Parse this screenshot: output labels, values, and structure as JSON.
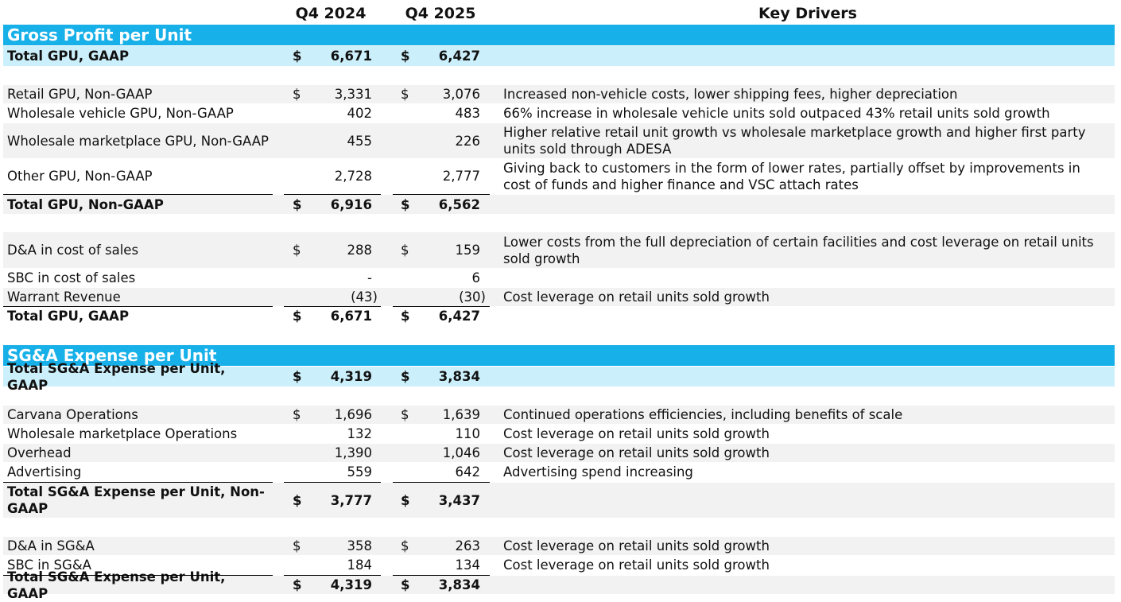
{
  "headers": {
    "col1": "Q4 2024",
    "col2": "Q4 2025",
    "drivers": "Key Drivers"
  },
  "sections": {
    "gross_profit": "Gross Profit per Unit",
    "sga": "SG&A Expense per Unit"
  },
  "rows": [
    {
      "label": "Total GPU, GAAP",
      "d1": "$",
      "v1": "6,671",
      "d2": "$",
      "v2": "6,427",
      "driver": ""
    },
    {
      "label": "Retail GPU, Non-GAAP",
      "d1": "$",
      "v1": "3,331",
      "d2": "$",
      "v2": "3,076",
      "driver": "Increased non-vehicle costs, lower shipping fees, higher depreciation"
    },
    {
      "label": "Wholesale vehicle GPU, Non-GAAP",
      "d1": "",
      "v1": "402",
      "d2": "",
      "v2": "483",
      "driver": "66% increase in wholesale vehicle units sold outpaced 43% retail units sold growth"
    },
    {
      "label": "Wholesale marketplace GPU, Non-GAAP",
      "d1": "",
      "v1": "455",
      "d2": "",
      "v2": "226",
      "driver": "Higher relative retail unit growth vs wholesale marketplace growth and higher first party units sold through ADESA"
    },
    {
      "label": "Other GPU, Non-GAAP",
      "d1": "",
      "v1": "2,728",
      "d2": "",
      "v2": "2,777",
      "driver": "Giving back to customers in the form of lower rates, partially offset by improvements in cost of funds and higher finance and VSC attach rates"
    },
    {
      "label": "Total GPU, Non-GAAP",
      "d1": "$",
      "v1": "6,916",
      "d2": "$",
      "v2": "6,562",
      "driver": ""
    },
    {
      "label": "D&A in cost of sales",
      "d1": "$",
      "v1": "288",
      "d2": "$",
      "v2": "159",
      "driver": "Lower costs from the full depreciation of certain facilities and cost leverage on retail units sold growth"
    },
    {
      "label": "SBC in cost of sales",
      "d1": "",
      "v1": "-",
      "d2": "",
      "v2": "6",
      "driver": ""
    },
    {
      "label": "Warrant Revenue",
      "d1": "",
      "v1": "(43)",
      "d2": "",
      "v2": "(30)",
      "driver": "Cost leverage on retail units sold growth"
    },
    {
      "label": "Total GPU, GAAP",
      "d1": "$",
      "v1": "6,671",
      "d2": "$",
      "v2": "6,427",
      "driver": ""
    },
    {
      "label": "Total SG&A Expense per Unit, GAAP",
      "d1": "$",
      "v1": "4,319",
      "d2": "$",
      "v2": "3,834",
      "driver": ""
    },
    {
      "label": "Carvana Operations",
      "d1": "$",
      "v1": "1,696",
      "d2": "$",
      "v2": "1,639",
      "driver": "Continued operations efficiencies, including benefits of scale"
    },
    {
      "label": "Wholesale marketplace Operations",
      "d1": "",
      "v1": "132",
      "d2": "",
      "v2": "110",
      "driver": "Cost leverage on retail units sold growth"
    },
    {
      "label": "Overhead",
      "d1": "",
      "v1": "1,390",
      "d2": "",
      "v2": "1,046",
      "driver": "Cost leverage on retail units sold growth"
    },
    {
      "label": "Advertising",
      "d1": "",
      "v1": "559",
      "d2": "",
      "v2": "642",
      "driver": "Advertising spend increasing"
    },
    {
      "label": "Total SG&A Expense per Unit, Non-GAAP",
      "d1": "$",
      "v1": "3,777",
      "d2": "$",
      "v2": "3,437",
      "driver": ""
    },
    {
      "label": "D&A in SG&A",
      "d1": "$",
      "v1": "358",
      "d2": "$",
      "v2": "263",
      "driver": "Cost leverage on retail units sold growth"
    },
    {
      "label": "SBC in SG&A",
      "d1": "",
      "v1": "184",
      "d2": "",
      "v2": "134",
      "driver": "Cost leverage on retail units sold growth"
    },
    {
      "label": "Total SG&A Expense per Unit, GAAP",
      "d1": "$",
      "v1": "4,319",
      "d2": "$",
      "v2": "3,834",
      "driver": ""
    }
  ],
  "colors": {
    "section_bar": "#17b0e8",
    "total_highlight": "#ccf0fb",
    "zebra": "#f2f2f2"
  }
}
